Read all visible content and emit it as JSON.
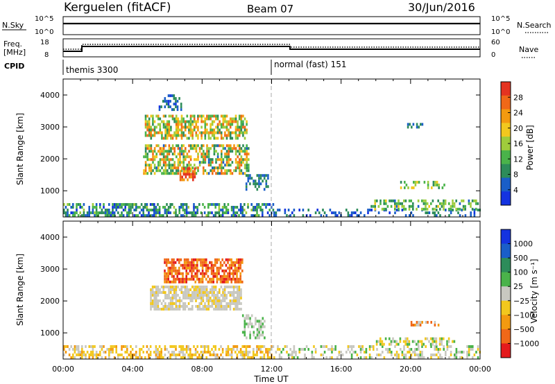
{
  "header": {
    "title_left": "Kerguelen (fitACF)",
    "title_center": "Beam 07",
    "title_right": "30/Jun/2016"
  },
  "top_panels": {
    "nsky_label": "N.Sky",
    "nsearch_label": "N.Search",
    "nsky_ticks": [
      "10^5",
      "10^0"
    ],
    "freq_label_1": "Freq.",
    "freq_label_2": "[MHz]",
    "freq_ticks": [
      "18",
      "8"
    ],
    "nave_label": "Nave",
    "nave_ticks": [
      "60",
      "0"
    ],
    "cpid_label": "CPID",
    "cpid_segments": [
      {
        "name": "themis 3300",
        "start_h": 0,
        "end_h": 12
      },
      {
        "name": "normal (fast) 151",
        "start_h": 12,
        "end_h": 24
      }
    ]
  },
  "panels": {
    "ylabel": "Slant Range [km]",
    "xlabel": "Time UT",
    "x_ticks": [
      "00:00",
      "04:00",
      "08:00",
      "12:00",
      "16:00",
      "20:00",
      "00:00"
    ],
    "y_ticks": [
      "1000",
      "2000",
      "3000",
      "4000"
    ],
    "power_cbar_label": "Power [dB]",
    "power_cbar_ticks": [
      "28",
      "24",
      "20",
      "16",
      "12",
      "8",
      "4"
    ],
    "velocity_cbar_label": "Velocity [m s⁻¹]",
    "velocity_cbar_ticks": [
      "1000",
      "500",
      "100",
      "25",
      "−25",
      "−100",
      "−500",
      "−1000"
    ]
  },
  "chart_data": [
    {
      "type": "line",
      "name": "N.Sky",
      "x_range_h": [
        0,
        24
      ],
      "values": [
        {
          "x": 0,
          "y": "10^5"
        },
        {
          "x": 24,
          "y": "10^5"
        }
      ]
    },
    {
      "type": "line",
      "name": "Freq.",
      "ylim": [
        8,
        18
      ],
      "points": [
        {
          "x": 0,
          "y": 9.5
        },
        {
          "x": 1,
          "y": 9.5
        },
        {
          "x": 1,
          "y": 12.5
        },
        {
          "x": 12.9,
          "y": 12.5
        },
        {
          "x": 12.9,
          "y": 10.3
        },
        {
          "x": 24,
          "y": 10.3
        }
      ]
    },
    {
      "type": "heatmap",
      "name": "Power",
      "xlim_h": [
        0,
        24
      ],
      "ylim_km": [
        180,
        4500
      ],
      "clim_db": [
        0,
        30
      ],
      "colors": [
        "#1433e0",
        "#1a5ec8",
        "#2d8c5a",
        "#4ab34a",
        "#9fcc3c",
        "#f2c81e",
        "#f39a10",
        "#f06818",
        "#e43320"
      ],
      "regions": [
        {
          "t0": 0,
          "t1": 12.1,
          "r0": 180,
          "r1": 550,
          "density": 0.55,
          "v0": 2,
          "v1": 14
        },
        {
          "t0": 4.7,
          "t1": 10.6,
          "r0": 2600,
          "r1": 3300,
          "density": 0.65,
          "v0": 8,
          "v1": 26
        },
        {
          "t0": 4.6,
          "t1": 10.7,
          "r0": 1500,
          "r1": 2450,
          "density": 0.6,
          "v0": 6,
          "v1": 26
        },
        {
          "t0": 6.7,
          "t1": 7.6,
          "r0": 1300,
          "r1": 1700,
          "density": 0.7,
          "v0": 18,
          "v1": 30
        },
        {
          "t0": 10.5,
          "t1": 11.8,
          "r0": 1000,
          "r1": 1500,
          "density": 0.5,
          "v0": 3,
          "v1": 10
        },
        {
          "t0": 5.5,
          "t1": 6.8,
          "r0": 3500,
          "r1": 4000,
          "density": 0.3,
          "v0": 2,
          "v1": 10
        },
        {
          "t0": 12.1,
          "t1": 24,
          "r0": 180,
          "r1": 380,
          "density": 0.25,
          "v0": 2,
          "v1": 10
        },
        {
          "t0": 17.7,
          "t1": 24,
          "r0": 380,
          "r1": 720,
          "density": 0.45,
          "v0": 6,
          "v1": 18
        },
        {
          "t0": 19.4,
          "t1": 21.9,
          "r0": 1050,
          "r1": 1300,
          "density": 0.5,
          "v0": 8,
          "v1": 18
        },
        {
          "t0": 19.8,
          "t1": 21.0,
          "r0": 2950,
          "r1": 3050,
          "density": 0.4,
          "v0": 4,
          "v1": 10
        }
      ]
    },
    {
      "type": "heatmap",
      "name": "Velocity",
      "xlim_h": [
        0,
        24
      ],
      "ylim_km": [
        180,
        4500
      ],
      "clim_ms": [
        -1000,
        1000
      ],
      "colors": [
        "#e41a1c",
        "#f06818",
        "#f39a10",
        "#f2c81e",
        "#c8c8c0",
        "#4ab34a",
        "#2d8c5a",
        "#1a5ec8",
        "#1433e0"
      ],
      "regions": [
        {
          "t0": 0,
          "t1": 12.1,
          "r0": 180,
          "r1": 600,
          "density": 0.55,
          "palette": [
            2,
            3,
            3,
            4
          ]
        },
        {
          "t0": 5.8,
          "t1": 10.3,
          "r0": 2550,
          "r1": 3300,
          "density": 0.7,
          "palette": [
            0,
            1,
            1,
            2
          ]
        },
        {
          "t0": 5.0,
          "t1": 10.2,
          "r0": 1700,
          "r1": 2400,
          "density": 0.75,
          "palette": [
            4,
            4,
            4,
            3
          ]
        },
        {
          "t0": 10.3,
          "t1": 11.6,
          "r0": 800,
          "r1": 1500,
          "density": 0.4,
          "palette": [
            4,
            5,
            4
          ]
        },
        {
          "t0": 12.1,
          "t1": 24,
          "r0": 180,
          "r1": 600,
          "density": 0.35,
          "palette": [
            4,
            4,
            3,
            5
          ]
        },
        {
          "t0": 18.0,
          "t1": 22.5,
          "r0": 600,
          "r1": 800,
          "density": 0.5,
          "palette": [
            5,
            4,
            3
          ]
        },
        {
          "t0": 20.0,
          "t1": 21.6,
          "r0": 1200,
          "r1": 1320,
          "density": 0.5,
          "palette": [
            4,
            1,
            2
          ]
        }
      ]
    }
  ]
}
